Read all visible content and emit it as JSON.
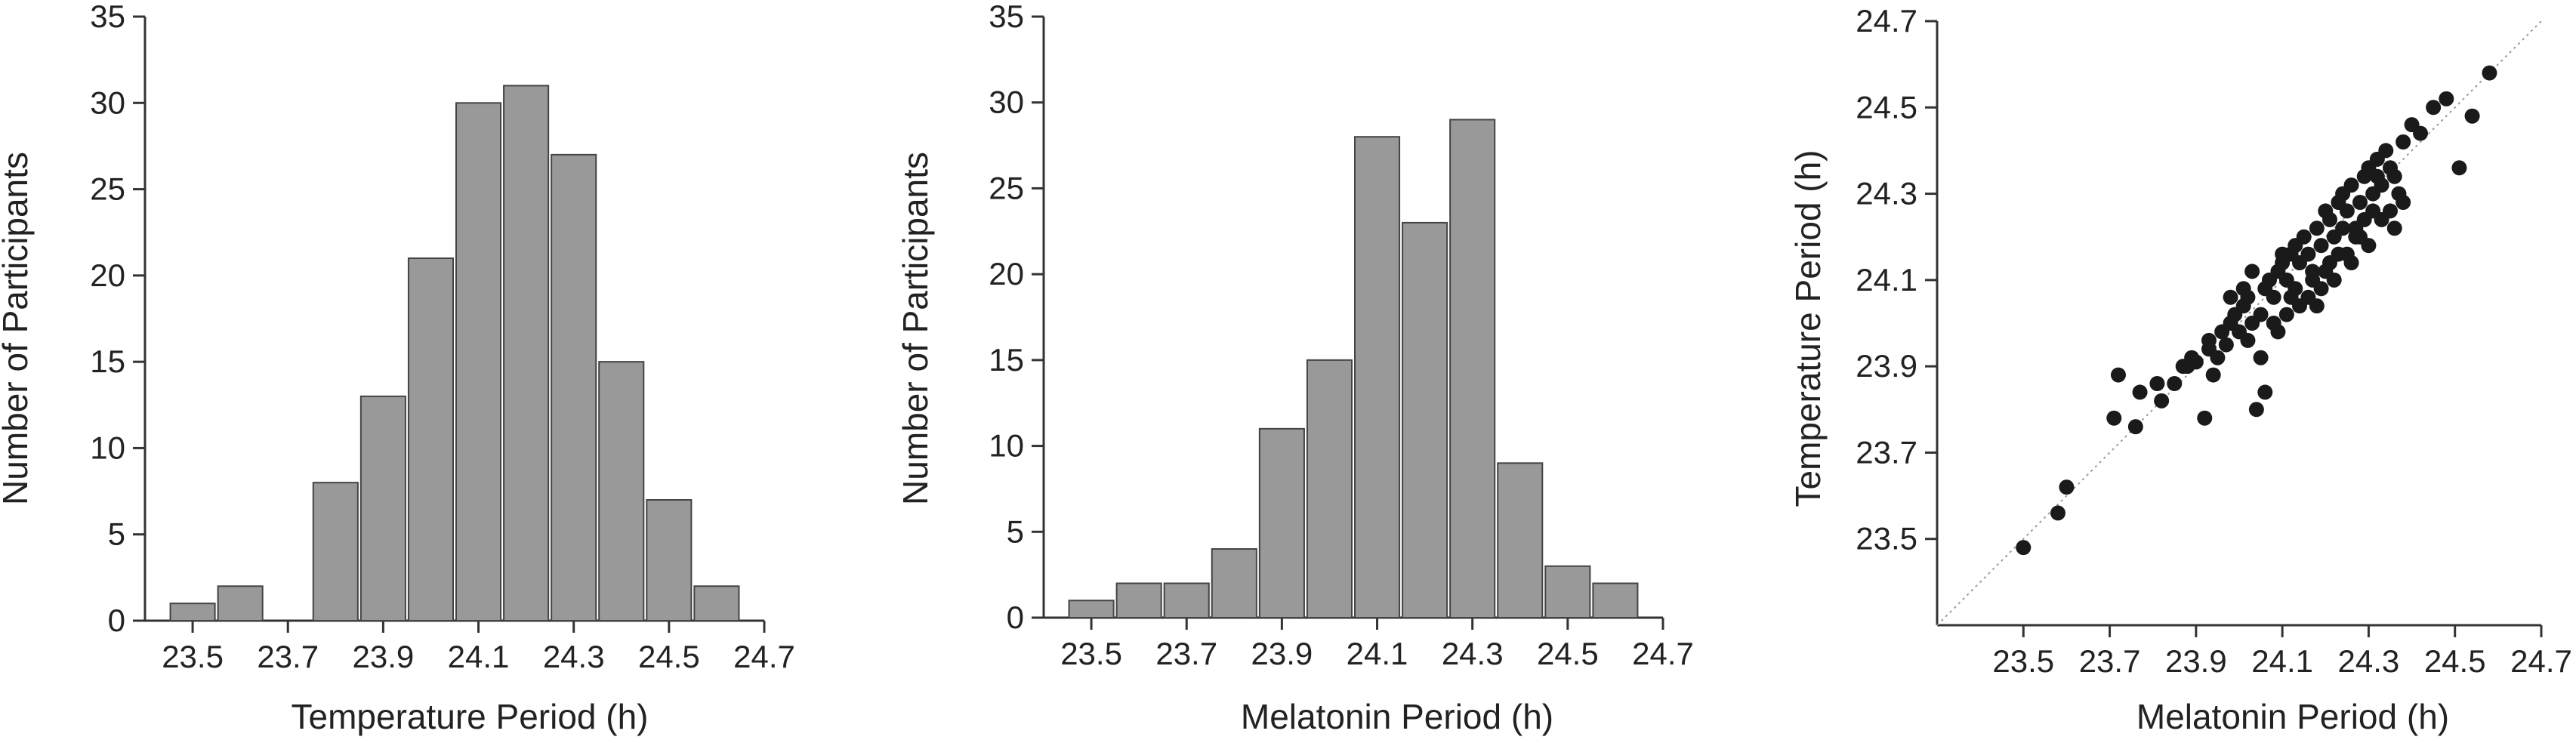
{
  "chart_data": [
    {
      "type": "bar",
      "categories": [
        "23.5",
        "23.6",
        "23.7",
        "23.8",
        "23.9",
        "24.0",
        "24.1",
        "24.2",
        "24.3",
        "24.4",
        "24.5",
        "24.6"
      ],
      "values": [
        1,
        2,
        0,
        8,
        13,
        21,
        30,
        31,
        27,
        15,
        7,
        2
      ],
      "xlabel": "Temperature Period (h)",
      "ylabel": "Number of Participants",
      "xlim": [
        23.4,
        24.7
      ],
      "ylim": [
        0,
        35
      ],
      "x_ticks": [
        "23.5",
        "23.7",
        "23.9",
        "24.1",
        "24.3",
        "24.5",
        "24.7"
      ],
      "y_ticks": [
        "0",
        "5",
        "10",
        "15",
        "20",
        "25",
        "30",
        "35"
      ],
      "bar_color": "#999999"
    },
    {
      "type": "bar",
      "categories": [
        "23.5",
        "23.6",
        "23.7",
        "23.8",
        "23.9",
        "24.0",
        "24.1",
        "24.2",
        "24.3",
        "24.4",
        "24.5",
        "24.6"
      ],
      "values": [
        1,
        2,
        2,
        4,
        11,
        15,
        28,
        23,
        29,
        9,
        3,
        2
      ],
      "xlabel": "Melatonin Period (h)",
      "ylabel": "Number of Participants",
      "xlim": [
        23.4,
        24.7
      ],
      "ylim": [
        0,
        35
      ],
      "x_ticks": [
        "23.5",
        "23.7",
        "23.9",
        "24.1",
        "24.3",
        "24.5",
        "24.7"
      ],
      "y_ticks": [
        "0",
        "5",
        "10",
        "15",
        "20",
        "25",
        "30",
        "35"
      ],
      "bar_color": "#999999"
    },
    {
      "type": "scatter",
      "xlabel": "Melatonin Period (h)",
      "ylabel": "Temperature Period (h)",
      "xlim": [
        23.3,
        24.7
      ],
      "ylim": [
        23.3,
        24.7
      ],
      "x_ticks": [
        "23.5",
        "23.7",
        "23.9",
        "24.1",
        "24.3",
        "24.5",
        "24.7"
      ],
      "y_ticks": [
        "23.5",
        "23.7",
        "23.9",
        "24.1",
        "24.3",
        "24.5",
        "24.7"
      ],
      "identity_line": true,
      "marker_color": "#1a1a1a",
      "x": [
        23.5,
        23.58,
        23.6,
        23.71,
        23.72,
        23.76,
        23.77,
        23.81,
        23.82,
        23.85,
        23.88,
        23.89,
        23.9,
        23.92,
        23.93,
        23.93,
        23.95,
        23.96,
        23.97,
        23.98,
        23.99,
        24.0,
        24.01,
        24.02,
        24.03,
        24.04,
        24.05,
        24.06,
        24.07,
        24.08,
        24.09,
        24.1,
        24.11,
        24.12,
        24.13,
        24.14,
        24.15,
        24.16,
        24.17,
        24.18,
        24.19,
        24.2,
        24.21,
        24.22,
        24.23,
        24.24,
        24.25,
        24.26,
        24.27,
        24.28,
        24.29,
        24.3,
        24.31,
        24.32,
        24.33,
        24.34,
        24.35,
        24.36,
        24.37,
        24.38,
        24.4,
        24.42,
        24.45,
        24.48,
        24.51,
        24.54,
        24.58,
        23.94,
        24.05,
        24.11,
        24.16,
        24.22,
        24.3,
        24.36,
        24.02,
        24.18,
        24.26,
        24.33,
        24.09,
        24.13,
        24.2,
        24.28,
        24.06,
        24.01,
        23.98,
        24.23,
        24.31,
        24.08,
        24.14,
        24.25,
        24.35,
        24.19,
        24.27,
        23.87,
        24.03,
        24.17,
        24.12,
        24.24,
        24.32,
        24.1,
        24.21,
        24.29,
        24.38
      ],
      "y": [
        23.48,
        23.56,
        23.62,
        23.78,
        23.88,
        23.76,
        23.84,
        23.86,
        23.82,
        23.86,
        23.9,
        23.92,
        23.91,
        23.78,
        23.94,
        23.96,
        23.92,
        23.98,
        23.95,
        24.0,
        24.02,
        23.98,
        24.04,
        24.06,
        24.0,
        23.8,
        24.02,
        24.08,
        24.1,
        24.06,
        24.12,
        24.14,
        24.1,
        24.16,
        24.18,
        24.14,
        24.2,
        24.16,
        24.12,
        24.22,
        24.18,
        24.26,
        24.24,
        24.2,
        24.28,
        24.3,
        24.26,
        24.32,
        24.22,
        24.28,
        24.34,
        24.36,
        24.3,
        24.38,
        24.32,
        24.4,
        24.36,
        24.34,
        24.3,
        24.42,
        24.46,
        24.44,
        24.5,
        24.52,
        24.36,
        24.48,
        24.58,
        23.88,
        23.92,
        24.02,
        24.06,
        24.1,
        24.18,
        24.22,
        23.96,
        24.04,
        24.14,
        24.24,
        23.98,
        24.08,
        24.12,
        24.2,
        23.84,
        24.08,
        24.06,
        24.16,
        24.26,
        24.0,
        24.04,
        24.16,
        24.26,
        24.08,
        24.2,
        23.9,
        24.12,
        24.1,
        24.06,
        24.22,
        24.34,
        24.16,
        24.14,
        24.24,
        24.28
      ]
    }
  ]
}
